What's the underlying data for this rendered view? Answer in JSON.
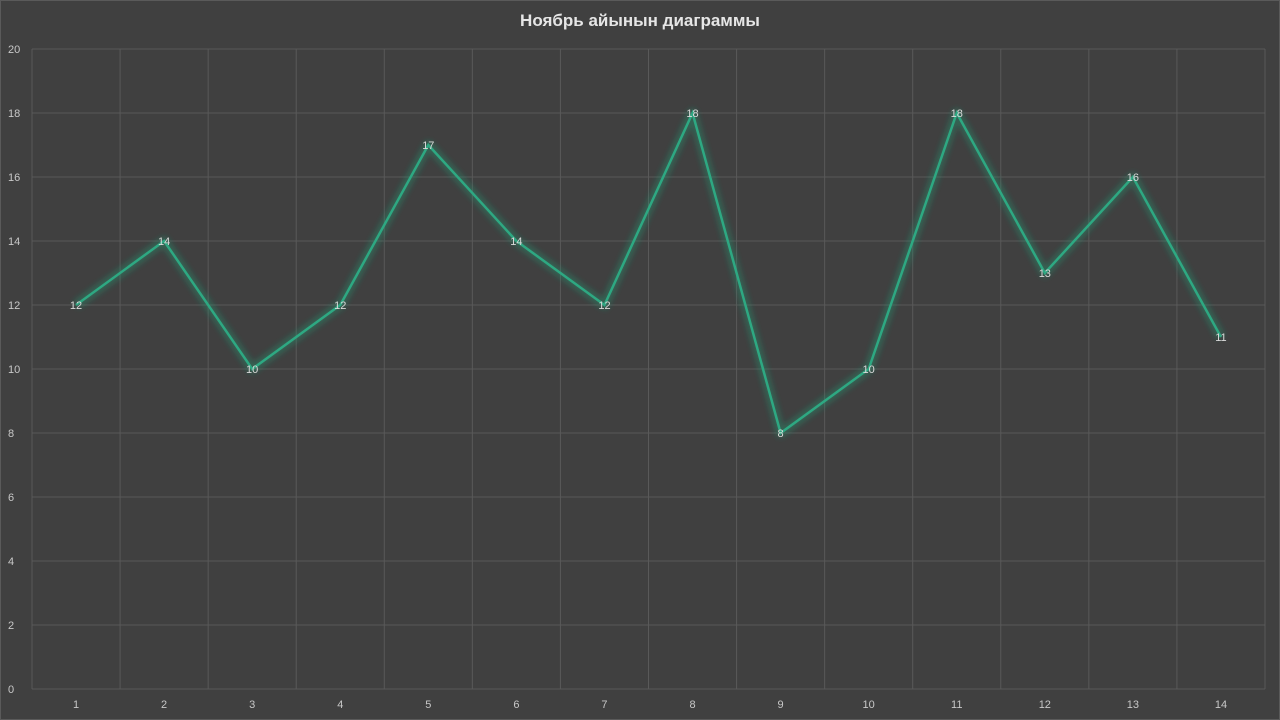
{
  "chart_data": {
    "type": "line",
    "title": "Ноябрь айынын диаграммы",
    "xlabel": "",
    "ylabel": "",
    "categories": [
      "1",
      "2",
      "3",
      "4",
      "5",
      "6",
      "7",
      "8",
      "9",
      "10",
      "11",
      "12",
      "13",
      "14"
    ],
    "series": [
      {
        "values": [
          12,
          14,
          10,
          12,
          17,
          14,
          12,
          18,
          8,
          10,
          18,
          13,
          16,
          11
        ]
      }
    ],
    "ylim": [
      0,
      20
    ],
    "yticks": [
      0,
      2,
      4,
      6,
      8,
      10,
      12,
      14,
      16,
      18,
      20
    ],
    "grid": true,
    "legend": "none",
    "data_labels": true,
    "colors": {
      "background": "#404040",
      "grid": "#595959",
      "line": "#2ea882",
      "text": "#c8c8c8"
    }
  }
}
